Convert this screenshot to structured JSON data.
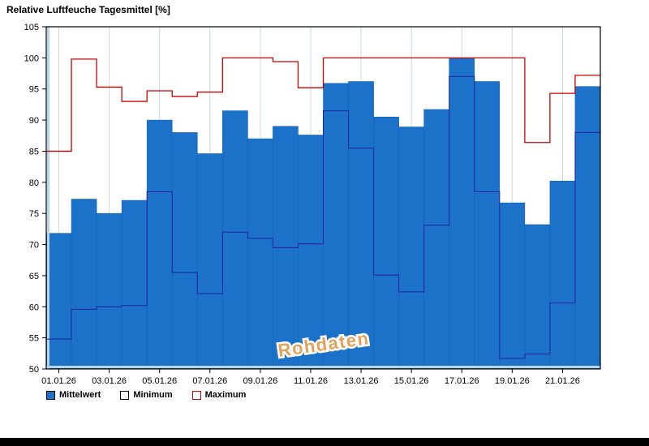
{
  "page": {
    "title": "Relative Luftfeuche Tagesmittel [%]",
    "watermark": "Rohdaten"
  },
  "legend": [
    {
      "label": "Mittelwert",
      "swatch": "filled-blue"
    },
    {
      "label": "Minimum",
      "swatch": "outline-black"
    },
    {
      "label": "Maximum",
      "swatch": "outline-red"
    }
  ],
  "colors": {
    "bar": "#1b72c8",
    "bar_edge": "#1563b2",
    "min_line": "#2020a0",
    "max_line": "#cc0000",
    "grid": "#c6d9ea",
    "axis": "#000000",
    "inset": "#b8d4ea",
    "watermark": "#e2a259"
  },
  "chart_data": {
    "type": "bar",
    "title": "Relative Luftfeuche Tagesmittel [%]",
    "xlabel": "",
    "ylabel": "",
    "ylim": [
      50,
      105
    ],
    "ytick_step": 5,
    "grid": "vertical-only",
    "legend_position": "bottom-left",
    "x_tick_labels": [
      "01.01.26",
      "03.01.26",
      "05.01.26",
      "07.01.26",
      "09.01.26",
      "11.01.26",
      "13.01.26",
      "15.01.26",
      "17.01.26",
      "19.01.26",
      "21.01.26"
    ],
    "categories": [
      "01.01.26",
      "02.01.26",
      "03.01.26",
      "04.01.26",
      "05.01.26",
      "06.01.26",
      "07.01.26",
      "08.01.26",
      "09.01.26",
      "10.01.26",
      "11.01.26",
      "12.01.26",
      "13.01.26",
      "14.01.26",
      "15.01.26",
      "16.01.26",
      "17.01.26",
      "18.01.26",
      "19.01.26",
      "20.01.26",
      "21.01.26",
      "22.01.26"
    ],
    "series": [
      {
        "name": "Mittelwert",
        "style": "bar",
        "values": [
          71.8,
          77.3,
          75.0,
          77.1,
          90.0,
          88.0,
          84.6,
          91.5,
          87.0,
          89.0,
          87.6,
          95.9,
          96.2,
          90.5,
          88.9,
          91.7,
          100.0,
          96.2,
          76.7,
          73.2,
          80.2,
          95.4
        ]
      },
      {
        "name": "Minimum",
        "style": "step-line",
        "values": [
          54.8,
          59.6,
          60.0,
          60.2,
          78.5,
          65.5,
          62.1,
          72.0,
          71.0,
          69.5,
          70.1,
          91.5,
          85.5,
          65.1,
          62.4,
          73.1,
          97.0,
          78.5,
          51.7,
          52.4,
          60.6,
          88.0
        ]
      },
      {
        "name": "Maximum",
        "style": "step-line",
        "values": [
          85.0,
          99.8,
          95.3,
          93.0,
          94.7,
          93.8,
          94.5,
          100.0,
          100.0,
          99.4,
          95.2,
          100.0,
          100.0,
          100.0,
          100.0,
          100.0,
          100.0,
          100.0,
          100.0,
          86.4,
          94.3,
          97.2
        ]
      }
    ]
  }
}
